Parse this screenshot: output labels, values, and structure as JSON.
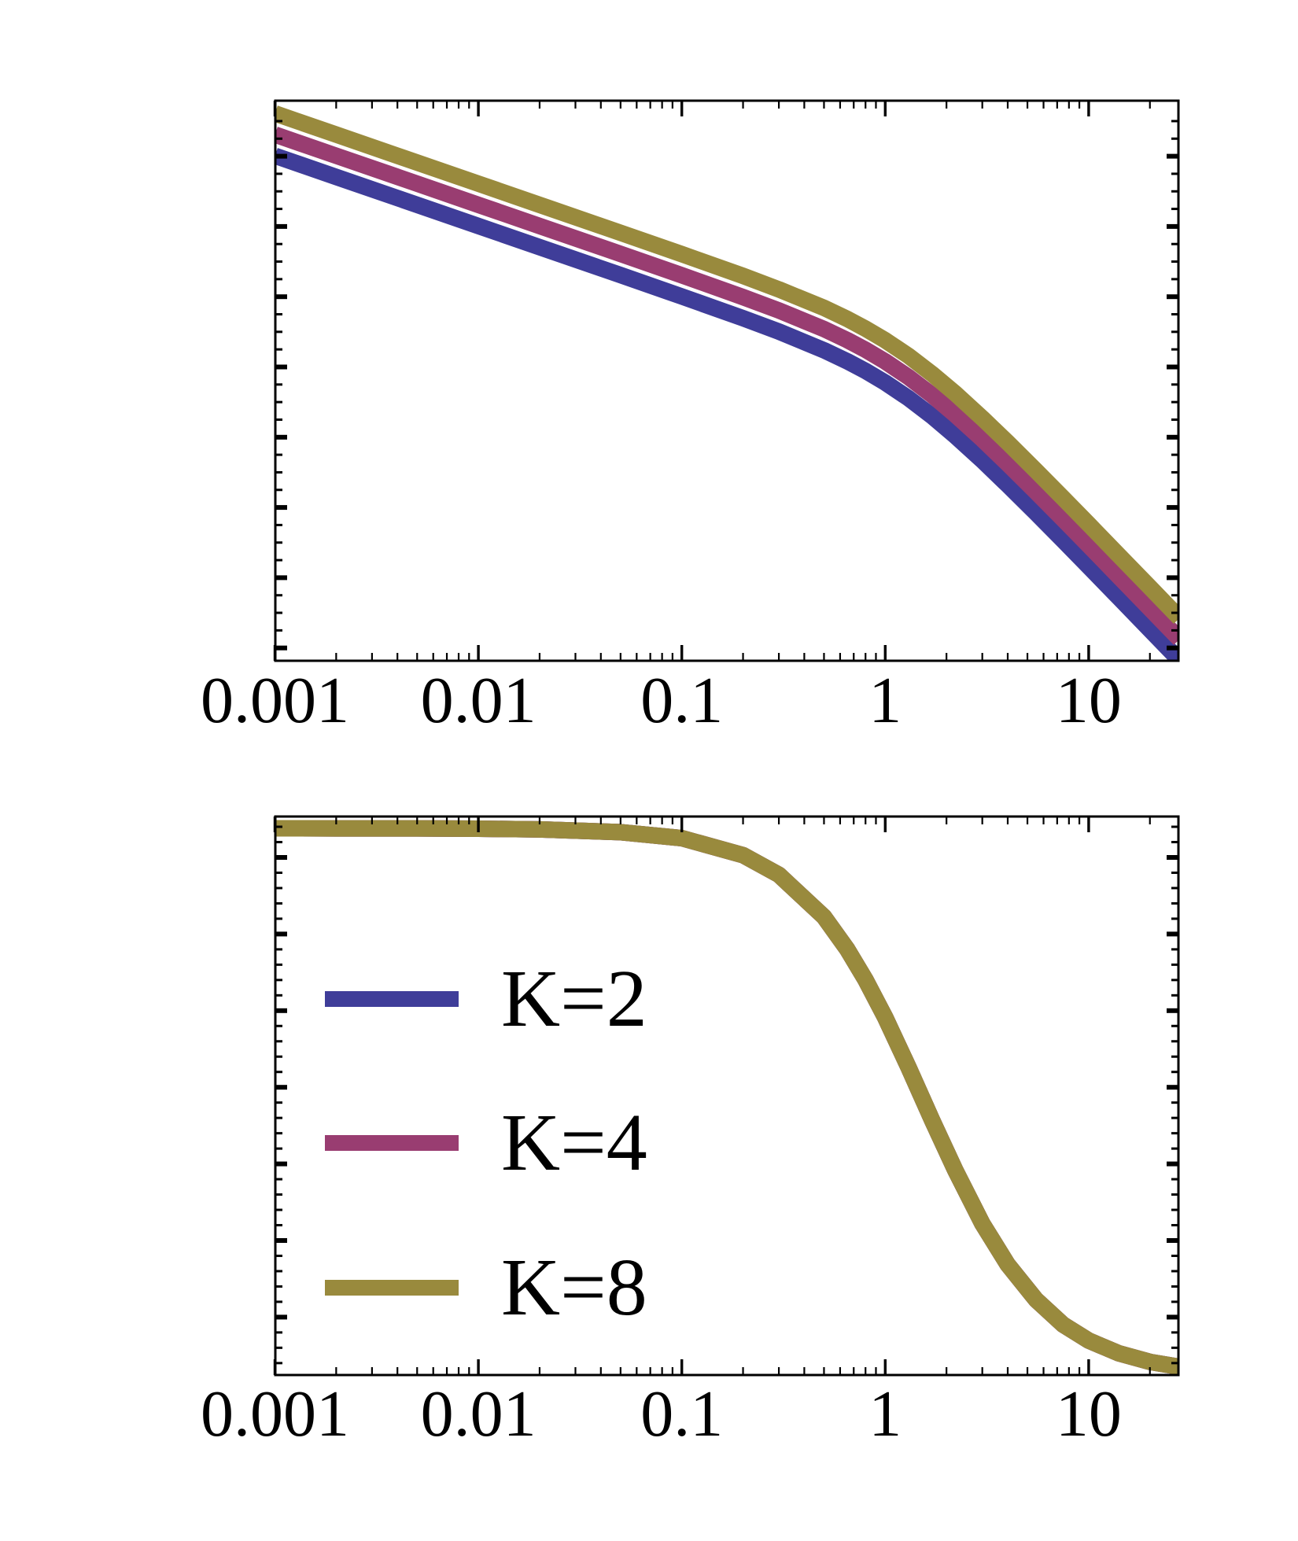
{
  "figure": {
    "background": "#FFFFFF",
    "note": "Two stacked framed plots (Mathematica style). Shared log x-axis 0.001–~30. No y-axis tick labels, no titles. Serif tick labels below each frame.",
    "frame_color": "#000000"
  },
  "legend": {
    "items": [
      {
        "label": "K=2",
        "color": "#3F3D99"
      },
      {
        "label": "K=4",
        "color": "#993D71"
      },
      {
        "label": "K=8",
        "color": "#998A3D"
      }
    ]
  },
  "chart_data": [
    {
      "id": "top-panel",
      "type": "line",
      "x_scale": "log",
      "y_scale": "log",
      "title": "",
      "xlabel": "",
      "ylabel": "",
      "x_range": [
        0.001,
        28
      ],
      "x_ticks": [
        0.001,
        0.01,
        0.1,
        1,
        10
      ],
      "x_tick_labels": [
        "0.001",
        "0.01",
        "0.1",
        "1",
        "10"
      ],
      "y_axis_note": "log scale, unlabeled ticks, arbitrary units; curves follow ~K/(x(1+(x/1.2)^2)) : slope -1 breaking to -3 near x≈1.2",
      "grid": false,
      "legend_position": "none",
      "x": [
        0.001,
        0.002,
        0.005,
        0.01,
        0.02,
        0.05,
        0.1,
        0.2,
        0.3,
        0.5,
        0.65,
        0.8,
        1,
        1.3,
        1.7,
        2.2,
        3,
        4,
        5.5,
        7.5,
        10,
        14,
        20,
        28
      ],
      "series": [
        {
          "name": "K=2",
          "color": "#3F3D99",
          "y": [
            1000,
            500,
            200,
            100,
            50,
            20,
            9.93,
            4.87,
            3.14,
            1.7,
            1.19,
            0.865,
            0.59,
            0.354,
            0.196,
            0.104,
            0.046,
            0.0206,
            0.00826,
            0.00333,
            0.00142,
            0.000521,
            0.000179,
            6.55e-05
          ]
        },
        {
          "name": "K=4",
          "color": "#993D71",
          "y": [
            2000,
            1000,
            400,
            200,
            100,
            40,
            19.9,
            9.73,
            6.27,
            3.41,
            2.38,
            1.73,
            1.18,
            0.708,
            0.391,
            0.208,
            0.092,
            0.0413,
            0.0165,
            0.00665,
            0.00284,
            0.00104,
            0.000359,
            0.000131
          ]
        },
        {
          "name": "K=8",
          "color": "#998A3D",
          "y": [
            4000,
            2000,
            800,
            400,
            200,
            80,
            39.7,
            19.5,
            12.5,
            6.82,
            4.76,
            3.46,
            2.36,
            1.42,
            0.782,
            0.417,
            0.184,
            0.0826,
            0.033,
            0.0133,
            0.00568,
            0.00208,
            0.000718,
            0.000262
          ]
        }
      ]
    },
    {
      "id": "bottom-panel",
      "type": "line",
      "x_scale": "log",
      "y_scale": "linear",
      "title": "",
      "xlabel": "",
      "ylabel": "",
      "x_range": [
        0.001,
        28
      ],
      "x_ticks": [
        0.001,
        0.01,
        0.1,
        1,
        10
      ],
      "x_tick_labels": [
        "0.001",
        "0.01",
        "0.1",
        "1",
        "10"
      ],
      "y_axis_note": "linear scale, unlabeled ticks, normalized units; sigmoidal decay ~1/(1+(x/1.55)^1.45)",
      "grid": false,
      "legend_position": "inside-left",
      "note": "The K=2, K=4 and K=8 curves coincide exactly; only the topmost (K=8, olive) stroke is visible.",
      "x": [
        0.001,
        0.002,
        0.005,
        0.01,
        0.02,
        0.05,
        0.1,
        0.2,
        0.3,
        0.5,
        0.65,
        0.8,
        1,
        1.3,
        1.7,
        2.2,
        3,
        4,
        5.5,
        7.5,
        10,
        14,
        20,
        28
      ],
      "series": [
        {
          "name": "K=2",
          "color": "#3F3D99",
          "y": [
            1.0,
            0.9999,
            0.9998,
            0.9993,
            0.998,
            0.993,
            0.982,
            0.951,
            0.915,
            0.838,
            0.779,
            0.723,
            0.654,
            0.563,
            0.466,
            0.376,
            0.277,
            0.202,
            0.138,
            0.092,
            0.063,
            0.04,
            0.024,
            0.015
          ]
        },
        {
          "name": "K=4",
          "color": "#993D71",
          "y": [
            1.0,
            0.9999,
            0.9998,
            0.9993,
            0.998,
            0.993,
            0.982,
            0.951,
            0.915,
            0.838,
            0.779,
            0.723,
            0.654,
            0.563,
            0.466,
            0.376,
            0.277,
            0.202,
            0.138,
            0.092,
            0.063,
            0.04,
            0.024,
            0.015
          ]
        },
        {
          "name": "K=8",
          "color": "#998A3D",
          "y": [
            1.0,
            0.9999,
            0.9998,
            0.9993,
            0.998,
            0.993,
            0.982,
            0.951,
            0.915,
            0.838,
            0.779,
            0.723,
            0.654,
            0.563,
            0.466,
            0.376,
            0.277,
            0.202,
            0.138,
            0.092,
            0.063,
            0.04,
            0.024,
            0.015
          ]
        }
      ]
    }
  ]
}
